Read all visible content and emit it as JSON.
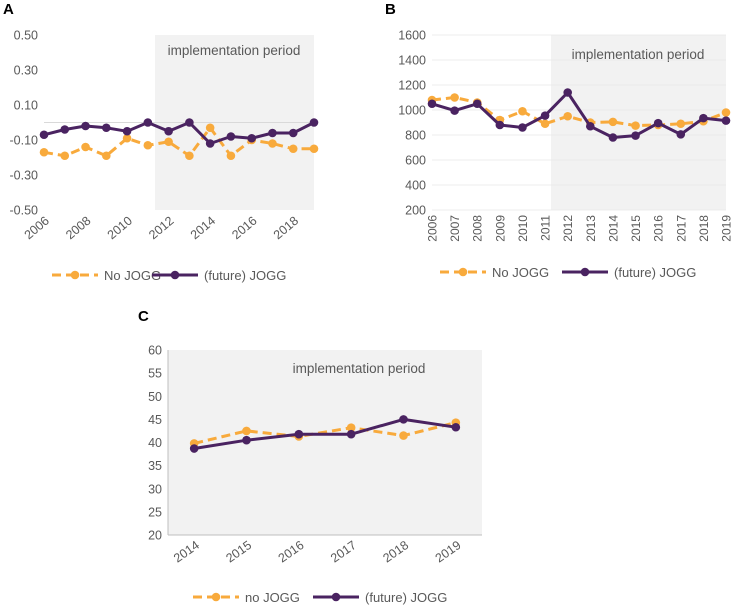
{
  "panels": {
    "A": {
      "label": "A"
    },
    "B": {
      "label": "B"
    },
    "C": {
      "label": "C"
    }
  },
  "colors": {
    "no_jogg": "#F8AA3C",
    "jogg": "#4A2361",
    "shade": "#F2F2F2",
    "grid": "#D9D9D9",
    "axis": "#595959"
  },
  "chart_data": [
    {
      "id": "A",
      "type": "line",
      "title": "",
      "xlabel": "",
      "ylabel": "",
      "x": [
        2006,
        2007,
        2008,
        2009,
        2010,
        2011,
        2012,
        2013,
        2014,
        2015,
        2016,
        2017,
        2018,
        2019
      ],
      "xticks": [
        "2006",
        "2008",
        "2010",
        "2012",
        "2014",
        "2016",
        "2018"
      ],
      "yticks": [
        "-0.50",
        "-0.30",
        "-0.10",
        "0.10",
        "0.30",
        "0.50"
      ],
      "ylim": [
        -0.5,
        0.5
      ],
      "shade_from": 2011,
      "shade_label": "implementation period",
      "series": [
        {
          "name": "No JOGG",
          "style": "dashed",
          "values": [
            -0.17,
            -0.19,
            -0.14,
            -0.19,
            -0.09,
            -0.13,
            -0.11,
            -0.19,
            -0.03,
            -0.19,
            -0.1,
            -0.12,
            -0.15,
            -0.15
          ]
        },
        {
          "name": "(future) JOGG",
          "style": "solid",
          "values": [
            -0.07,
            -0.04,
            -0.02,
            -0.03,
            -0.05,
            0.0,
            -0.05,
            0.0,
            -0.12,
            -0.08,
            -0.09,
            -0.06,
            -0.06,
            0.0
          ]
        }
      ],
      "legend": [
        "No JOGG",
        "(future) JOGG"
      ],
      "legend_position": "bottom"
    },
    {
      "id": "B",
      "type": "line",
      "title": "",
      "xlabel": "",
      "ylabel": "",
      "x": [
        2006,
        2007,
        2008,
        2009,
        2010,
        2011,
        2012,
        2013,
        2014,
        2015,
        2016,
        2017,
        2018,
        2019
      ],
      "xticks": [
        "2006",
        "2007",
        "2008",
        "2009",
        "2010",
        "2011",
        "2012",
        "2013",
        "2014",
        "2015",
        "2016",
        "2017",
        "2018",
        "2019"
      ],
      "yticks": [
        "200",
        "400",
        "600",
        "800",
        "1000",
        "1200",
        "1400",
        "1600"
      ],
      "ylim": [
        200,
        1600
      ],
      "shade_from": 2011,
      "shade_label": "implementation period",
      "series": [
        {
          "name": "No JOGG",
          "style": "dashed",
          "values": [
            1080,
            1100,
            1060,
            920,
            990,
            890,
            950,
            900,
            905,
            875,
            880,
            890,
            910,
            980
          ]
        },
        {
          "name": "(future) JOGG",
          "style": "solid",
          "values": [
            1050,
            995,
            1050,
            880,
            860,
            955,
            1140,
            870,
            780,
            795,
            895,
            805,
            935,
            915
          ]
        }
      ],
      "legend": [
        "No JOGG",
        "(future) JOGG"
      ],
      "legend_position": "bottom"
    },
    {
      "id": "C",
      "type": "line",
      "title": "",
      "xlabel": "",
      "ylabel": "",
      "x": [
        2014,
        2015,
        2016,
        2017,
        2018,
        2019
      ],
      "xticks": [
        "2014",
        "2015",
        "2016",
        "2017",
        "2018",
        "2019"
      ],
      "yticks": [
        "20",
        "25",
        "30",
        "35",
        "40",
        "45",
        "50",
        "55",
        "60"
      ],
      "ylim": [
        20,
        60
      ],
      "shade_from": 2014,
      "shade_label": "implementation period",
      "series": [
        {
          "name": "no JOGG",
          "style": "dashed",
          "values": [
            39.8,
            42.5,
            41.3,
            43.2,
            41.5,
            44.3
          ]
        },
        {
          "name": "(future) JOGG",
          "style": "solid",
          "values": [
            38.7,
            40.5,
            41.8,
            41.8,
            45.0,
            43.3
          ]
        }
      ],
      "legend": [
        "no JOGG",
        "(future) JOGG"
      ],
      "legend_position": "bottom"
    }
  ]
}
